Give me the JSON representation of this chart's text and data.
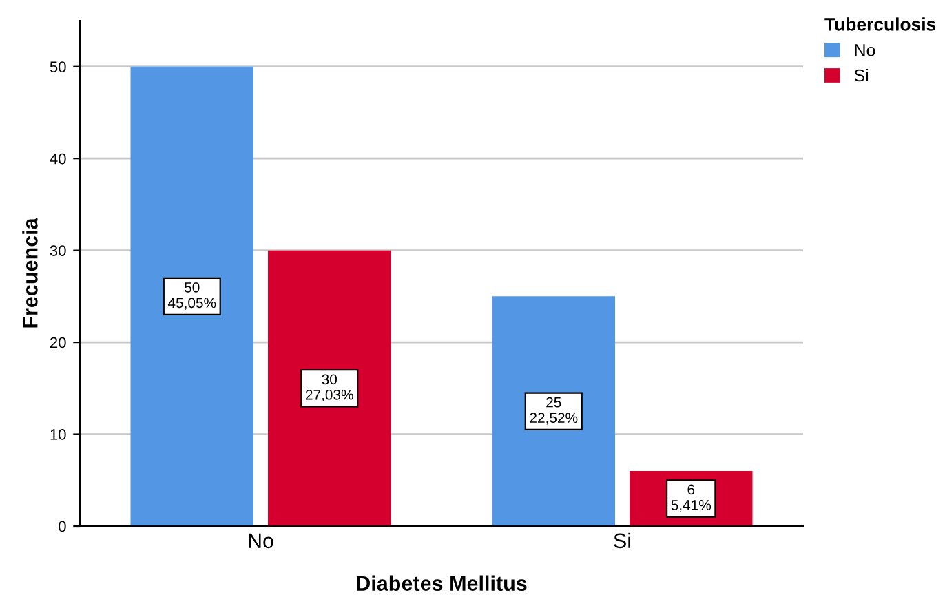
{
  "chart_data": {
    "type": "bar",
    "xlabel": "Diabetes Mellitus",
    "ylabel": "Frecuencia",
    "legend_title": "Tuberculosis",
    "categories": [
      "No",
      "Si"
    ],
    "series": [
      {
        "name": "No",
        "color": "#5296e4",
        "values": [
          50,
          25
        ],
        "value_labels": [
          "50\n45,05%",
          "25\n22,52%"
        ]
      },
      {
        "name": "Si",
        "color": "#d6002f",
        "values": [
          30,
          6
        ],
        "value_labels": [
          "30\n27,03%",
          "6\n5,41%"
        ]
      }
    ],
    "ylim": [
      0,
      55
    ],
    "yticks": [
      0,
      10,
      20,
      30,
      40,
      50
    ],
    "grid": "y",
    "legend": "top right"
  }
}
